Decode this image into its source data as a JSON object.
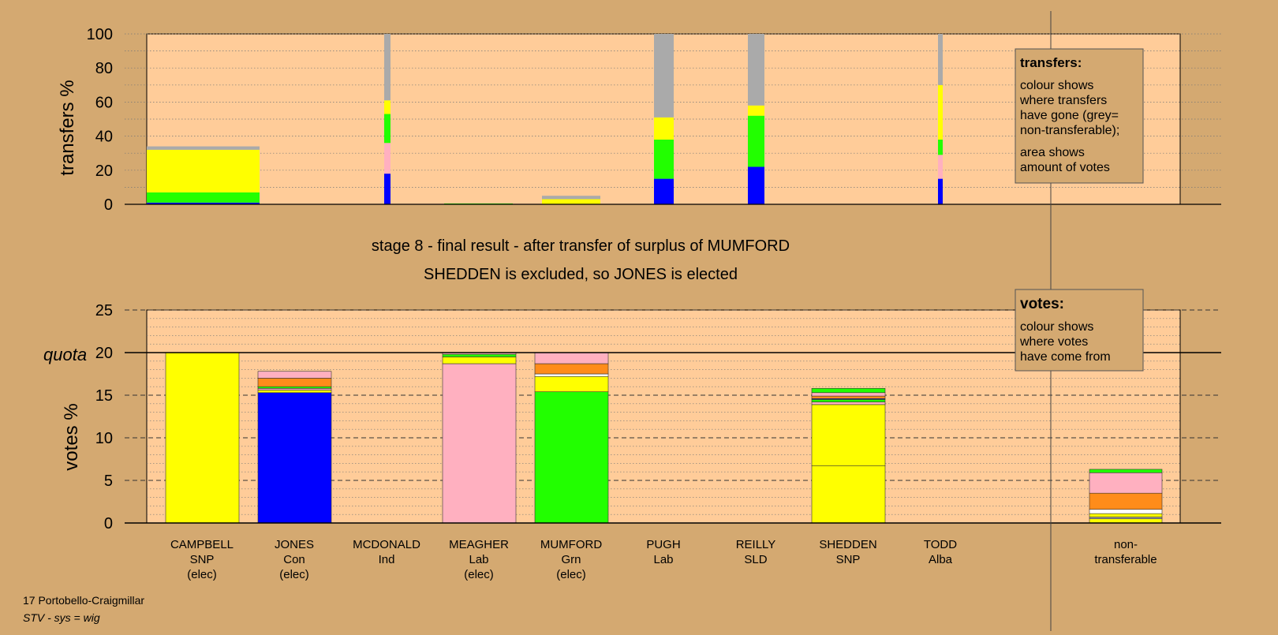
{
  "titles": {
    "stage": "stage 8 - final result - after transfer of surplus of MUMFORD",
    "outcome": "SHEDDEN is excluded, so JONES is elected"
  },
  "footer": {
    "ward": "17 Portobello-Craigmillar",
    "system": "STV - sys = wig"
  },
  "legend_transfers": {
    "title": "transfers:",
    "lines": [
      "colour shows",
      "where transfers",
      "have gone (grey=",
      "non-transferable);",
      "area shows",
      "amount of votes"
    ]
  },
  "legend_votes": {
    "title": "votes:",
    "lines": [
      "colour shows",
      "where votes",
      "have come from"
    ]
  },
  "chart_data": [
    {
      "type": "bar",
      "stacked": true,
      "panel": "transfers",
      "ylabel": "transfers %",
      "ylim": [
        0,
        100
      ],
      "yticks": [
        0,
        20,
        40,
        60,
        80,
        100
      ],
      "grid": true,
      "bars": [
        {
          "candidate": "CAMPBELL",
          "width_share": "wide",
          "segments": [
            {
              "party": "Con",
              "color": "#0000ff",
              "value": 1
            },
            {
              "party": "Grn",
              "color": "#22ff00",
              "value": 6
            },
            {
              "party": "SNP",
              "color": "#ffff00",
              "value": 25
            },
            {
              "party": "non-transferable",
              "color": "#aaaaaa",
              "value": 2
            }
          ]
        },
        {
          "candidate": "MCDONALD",
          "width_share": "thin",
          "segments": [
            {
              "party": "Con",
              "color": "#0000ff",
              "value": 18
            },
            {
              "party": "Lab",
              "color": "#ffb0c0",
              "value": 18
            },
            {
              "party": "Grn",
              "color": "#22ff00",
              "value": 17
            },
            {
              "party": "SNP",
              "color": "#ffff00",
              "value": 8
            },
            {
              "party": "non-transferable",
              "color": "#aaaaaa",
              "value": 39
            }
          ]
        },
        {
          "candidate": "MEAGHER",
          "width_share": "wide",
          "segments": [
            {
              "party": "Grn",
              "color": "#22ff00",
              "value": 0.5
            }
          ]
        },
        {
          "candidate": "MUMFORD",
          "width_share": "medium",
          "segments": [
            {
              "party": "SNP",
              "color": "#ffff00",
              "value": 3
            },
            {
              "party": "non-transferable",
              "color": "#aaaaaa",
              "value": 2
            }
          ]
        },
        {
          "candidate": "PUGH",
          "width_share": "narrow",
          "segments": [
            {
              "party": "Con",
              "color": "#0000ff",
              "value": 15
            },
            {
              "party": "Grn",
              "color": "#22ff00",
              "value": 23
            },
            {
              "party": "SNP",
              "color": "#ffff00",
              "value": 13
            },
            {
              "party": "non-transferable",
              "color": "#aaaaaa",
              "value": 49
            }
          ]
        },
        {
          "candidate": "REILLY",
          "width_share": "narrow",
          "segments": [
            {
              "party": "Con",
              "color": "#0000ff",
              "value": 22
            },
            {
              "party": "Grn",
              "color": "#22ff00",
              "value": 30
            },
            {
              "party": "SNP",
              "color": "#ffff00",
              "value": 6
            },
            {
              "party": "non-transferable",
              "color": "#aaaaaa",
              "value": 42
            }
          ]
        },
        {
          "candidate": "TODD",
          "width_share": "thin",
          "segments": [
            {
              "party": "Con",
              "color": "#0000ff",
              "value": 15
            },
            {
              "party": "Lab",
              "color": "#ffb0c0",
              "value": 14
            },
            {
              "party": "Grn",
              "color": "#22ff00",
              "value": 9
            },
            {
              "party": "SNP",
              "color": "#ffff00",
              "value": 32
            },
            {
              "party": "non-transferable",
              "color": "#aaaaaa",
              "value": 30
            }
          ]
        }
      ]
    },
    {
      "type": "bar",
      "stacked": true,
      "panel": "votes",
      "ylabel": "votes %",
      "ylim": [
        0,
        25
      ],
      "yticks": [
        0,
        5,
        10,
        15,
        20,
        25
      ],
      "quota": {
        "label": "quota",
        "value": 20
      },
      "grid": true,
      "categories": [
        {
          "name": "CAMPBELL",
          "party": "SNP",
          "status": "(elec)"
        },
        {
          "name": "JONES",
          "party": "Con",
          "status": "(elec)"
        },
        {
          "name": "MCDONALD",
          "party": "Ind",
          "status": ""
        },
        {
          "name": "MEAGHER",
          "party": "Lab",
          "status": "(elec)"
        },
        {
          "name": "MUMFORD",
          "party": "Grn",
          "status": "(elec)"
        },
        {
          "name": "PUGH",
          "party": "Lab",
          "status": ""
        },
        {
          "name": "REILLY",
          "party": "SLD",
          "status": ""
        },
        {
          "name": "SHEDDEN",
          "party": "SNP",
          "status": ""
        },
        {
          "name": "TODD",
          "party": "Alba",
          "status": ""
        }
      ],
      "nontransferable_label": [
        "non-",
        "transferable"
      ],
      "bars": [
        {
          "candidate": "CAMPBELL",
          "segments": [
            {
              "color": "#ffff00",
              "value": 20
            }
          ]
        },
        {
          "candidate": "JONES",
          "segments": [
            {
              "color": "#0000ff",
              "value": 15.3
            },
            {
              "color": "#ffff00",
              "value": 0.3
            },
            {
              "color": "#ffb0c0",
              "value": 0.2
            },
            {
              "color": "#22ff00",
              "value": 0.2
            },
            {
              "color": "#ff8c1a",
              "value": 1.0
            },
            {
              "color": "#ffb0c0",
              "value": 0.8
            }
          ]
        },
        {
          "candidate": "MCDONALD",
          "segments": []
        },
        {
          "candidate": "MEAGHER",
          "segments": [
            {
              "color": "#ffb0c0",
              "value": 18.7
            },
            {
              "color": "#ffff00",
              "value": 0.8
            },
            {
              "color": "#22ff00",
              "value": 0.3
            },
            {
              "color": "#ffb0c0",
              "value": 0.2
            }
          ]
        },
        {
          "candidate": "MUMFORD",
          "segments": [
            {
              "color": "#22ff00",
              "value": 15.4
            },
            {
              "color": "#ffff00",
              "value": 1.8
            },
            {
              "color": "#ffffff",
              "value": 0.3
            },
            {
              "color": "#ff8c1a",
              "value": 1.2
            },
            {
              "color": "#ffb0c0",
              "value": 1.3
            }
          ]
        },
        {
          "candidate": "PUGH",
          "segments": []
        },
        {
          "candidate": "REILLY",
          "segments": []
        },
        {
          "candidate": "SHEDDEN",
          "segments": [
            {
              "color": "#ffff00",
              "value": 6.7
            },
            {
              "color": "#ffff00",
              "value": 7.2
            },
            {
              "color": "#ffb0c0",
              "value": 0.3
            },
            {
              "color": "#22ff00",
              "value": 0.3
            },
            {
              "color": "#0000ff",
              "value": 0.1
            },
            {
              "color": "#ff8c1a",
              "value": 0.3
            },
            {
              "color": "#ffb0c0",
              "value": 0.4
            },
            {
              "color": "#22ff00",
              "value": 0.5
            }
          ]
        },
        {
          "candidate": "TODD",
          "segments": []
        },
        {
          "candidate": "non-transferable",
          "segments": [
            {
              "color": "#ffff00",
              "value": 0.5
            },
            {
              "color": "#aaaaaa",
              "value": 0.2
            },
            {
              "color": "#ffff00",
              "value": 0.4
            },
            {
              "color": "#ffffff",
              "value": 0.5
            },
            {
              "color": "#ff8c1a",
              "value": 1.9
            },
            {
              "color": "#ffb0c0",
              "value": 2.4
            },
            {
              "color": "#22ff00",
              "value": 0.4
            }
          ]
        }
      ]
    }
  ]
}
